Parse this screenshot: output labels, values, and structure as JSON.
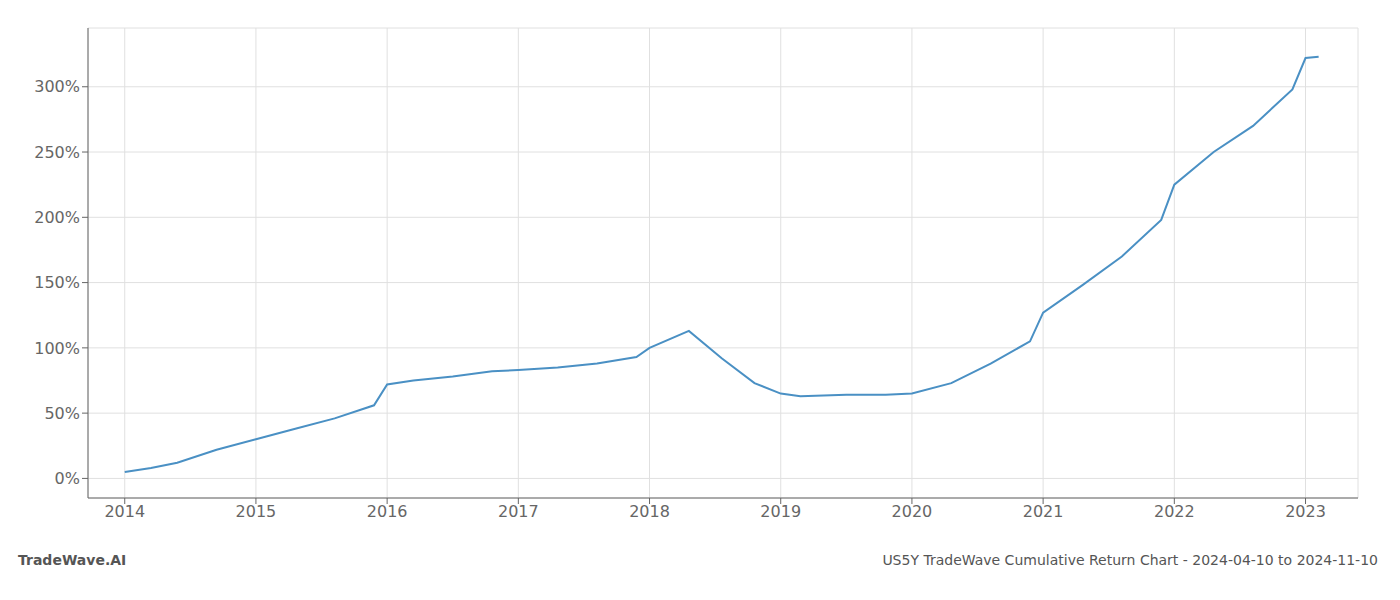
{
  "chart_data": {
    "type": "line",
    "annotations": [
      "TradeWave.AI",
      "US5Y TradeWave Cumulative Return Chart - 2024-04-10 to 2024-11-10"
    ],
    "x": [
      2014.0,
      2014.2,
      2014.4,
      2014.7,
      2015.0,
      2015.3,
      2015.6,
      2015.9,
      2016.0,
      2016.2,
      2016.5,
      2016.8,
      2017.0,
      2017.3,
      2017.6,
      2017.9,
      2018.0,
      2018.3,
      2018.55,
      2018.8,
      2019.0,
      2019.15,
      2019.5,
      2019.8,
      2020.0,
      2020.3,
      2020.6,
      2020.9,
      2021.0,
      2021.3,
      2021.6,
      2021.9,
      2022.0,
      2022.3,
      2022.6,
      2022.9,
      2023.0,
      2023.1
    ],
    "values": [
      5,
      8,
      12,
      22,
      30,
      38,
      46,
      56,
      72,
      75,
      78,
      82,
      83,
      85,
      88,
      93,
      100,
      113,
      92,
      73,
      65,
      63,
      64,
      64,
      65,
      73,
      88,
      105,
      127,
      148,
      170,
      198,
      225,
      250,
      270,
      298,
      322,
      323
    ],
    "color": "#4a90c4",
    "xlim": [
      2013.72,
      2023.4
    ],
    "ylim": [
      -15,
      345
    ],
    "xticks": [
      2014,
      2015,
      2016,
      2017,
      2018,
      2019,
      2020,
      2021,
      2022,
      2023
    ],
    "yticks": [
      {
        "value": 0,
        "label": "0%"
      },
      {
        "value": 50,
        "label": "50%"
      },
      {
        "value": 100,
        "label": "100%"
      },
      {
        "value": 150,
        "label": "150%"
      },
      {
        "value": 200,
        "label": "200%"
      },
      {
        "value": 250,
        "label": "250%"
      },
      {
        "value": 300,
        "label": "300%"
      }
    ],
    "grid": true
  }
}
